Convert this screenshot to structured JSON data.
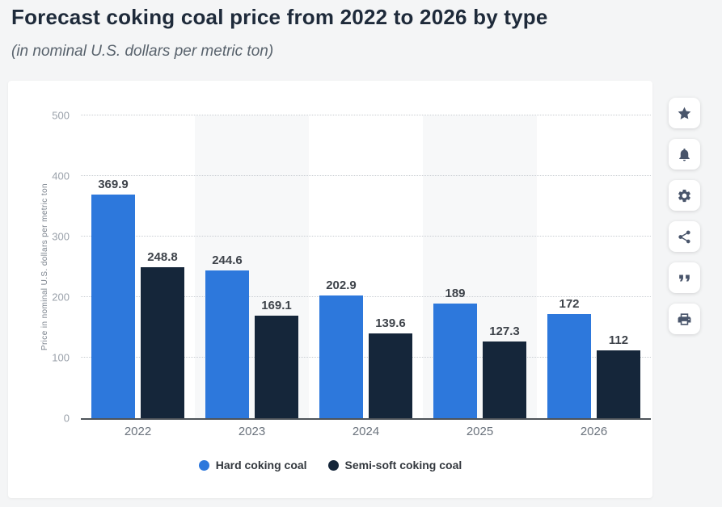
{
  "header": {
    "title": "Forecast coking coal price from 2022 to 2026 by type",
    "subtitle": "(in nominal U.S. dollars per metric ton)"
  },
  "chart_data": {
    "type": "bar",
    "title": "Forecast coking coal price from 2022 to 2026 by type",
    "subtitle": "(in nominal U.S. dollars per metric ton)",
    "categories": [
      "2022",
      "2023",
      "2024",
      "2025",
      "2026"
    ],
    "series": [
      {
        "name": "Hard coking coal",
        "color": "#2d78dc",
        "values": [
          369.9,
          244.6,
          202.9,
          189,
          172
        ]
      },
      {
        "name": "Semi-soft coking coal",
        "color": "#15263a",
        "values": [
          248.8,
          169.1,
          139.6,
          127.3,
          112
        ]
      }
    ],
    "xlabel": "",
    "ylabel": "Price in nominal U.S. dollars per metric ton",
    "ylim": [
      0,
      500
    ],
    "yticks": [
      0,
      100,
      200,
      300,
      400,
      500
    ],
    "grid": "horizontal-dotted",
    "legend_position": "bottom"
  },
  "colors": {
    "page_background": "#f4f5f6",
    "card_background": "#ffffff",
    "hard_coking_coal": "#2d78dc",
    "semi_soft_coking_coal": "#15263a",
    "axis_line": "#4e545a"
  },
  "action_rail": {
    "icons": [
      "star-icon",
      "bell-icon",
      "gear-icon",
      "share-icon",
      "quote-icon",
      "print-icon"
    ]
  }
}
